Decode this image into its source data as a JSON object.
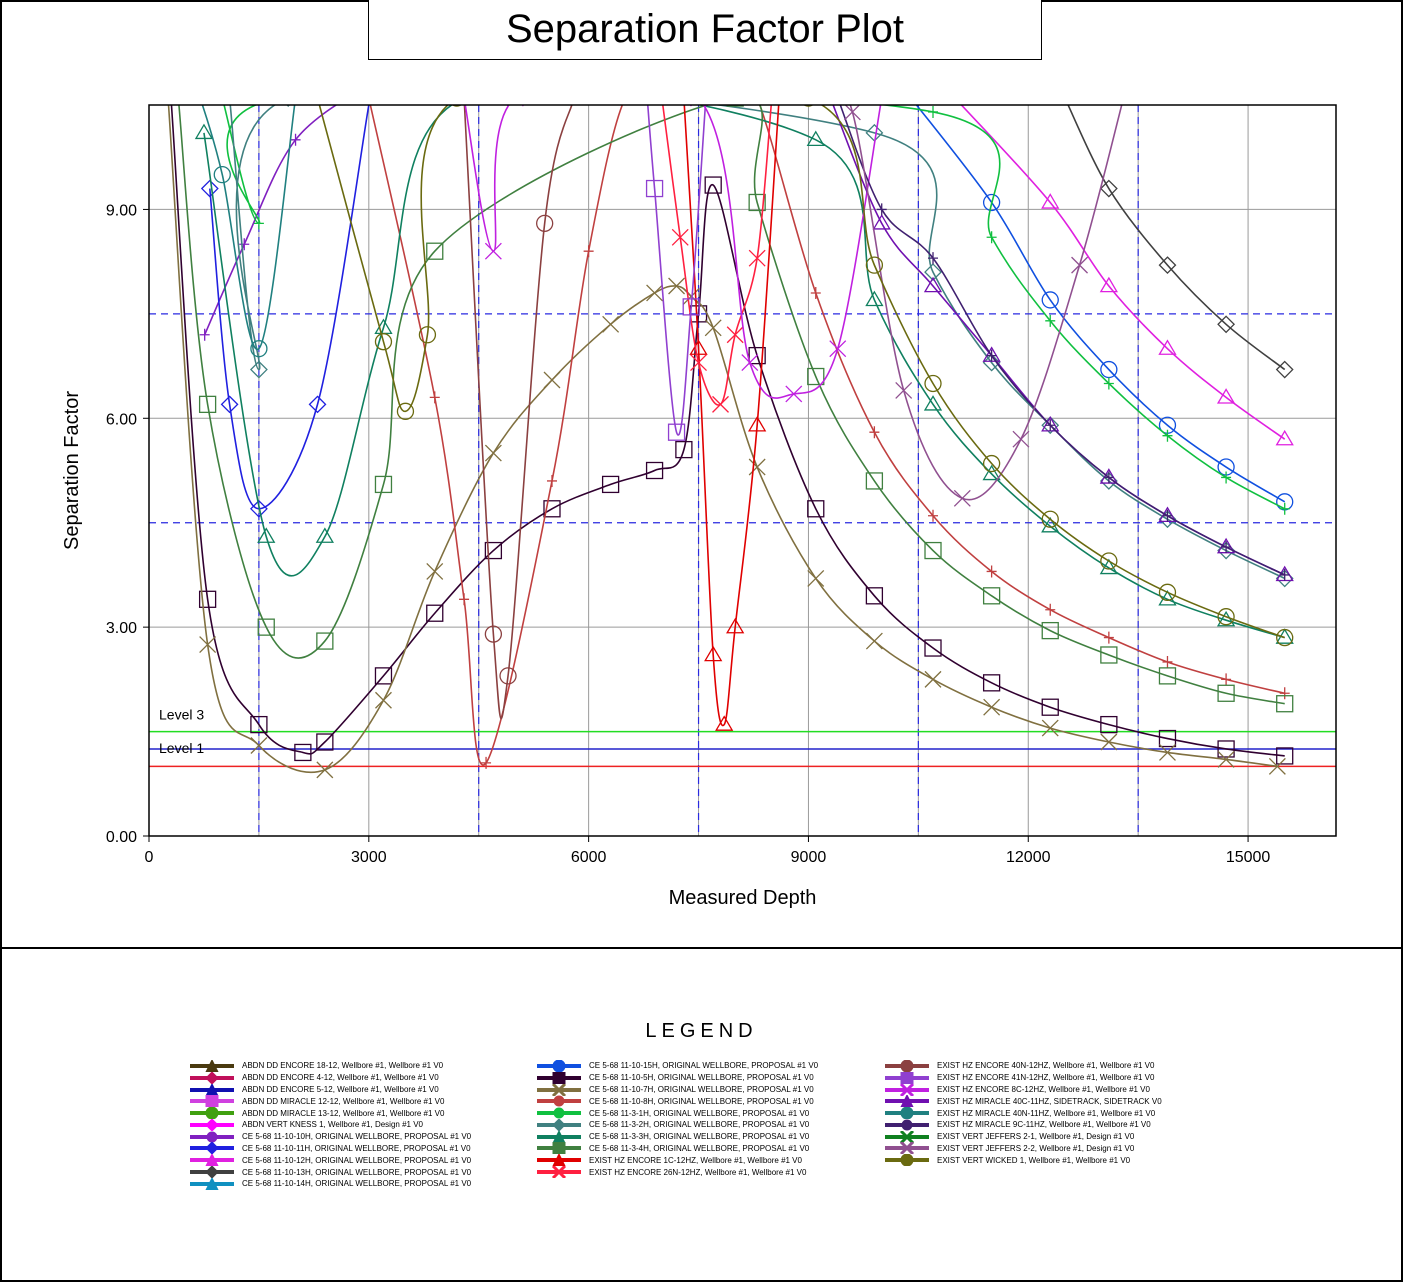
{
  "title": "Separation Factor Plot",
  "legend_title": "LEGEND",
  "chart_data": {
    "type": "line",
    "title": "Separation Factor Plot",
    "xlabel": "Measured Depth",
    "ylabel": "Separation Factor",
    "xlim": [
      0,
      16200
    ],
    "ylim": [
      0,
      10.5
    ],
    "xticks": [
      "0",
      "3000",
      "6000",
      "9000",
      "12000",
      "15000"
    ],
    "yticks": [
      "0.00",
      "3.00",
      "6.00",
      "9.00"
    ],
    "grid": true,
    "legend_position": "bottom",
    "levels": [
      {
        "label": "Level 3",
        "value": 1.5,
        "color": "#22dd22"
      },
      {
        "label": "Level 1",
        "value": 1.25,
        "color": "#2222cc"
      },
      {
        "label": "",
        "value": 1.0,
        "color": "#ee2222"
      }
    ],
    "dashed_vertical_lines": [
      1500,
      4500,
      7500,
      10500,
      13500
    ],
    "dashed_horizontal_lines": [
      4.5,
      7.5
    ],
    "series": [
      {
        "name": "ABDN DD ENCORE 18-12, Wellbore #1, Wellbore #1 V0",
        "color": "#4a3a10",
        "marker": "triangle",
        "x": [],
        "y": []
      },
      {
        "name": "ABDN DD ENCORE 4-12, Wellbore #1, Wellbore #1 V0",
        "color": "#c0105a",
        "marker": "diamond",
        "x": [],
        "y": []
      },
      {
        "name": "ABDN DD ENCORE 5-12, Wellbore #1, Wellbore #1 V0",
        "color": "#1010b0",
        "marker": "triangle",
        "x": [],
        "y": []
      },
      {
        "name": "ABDN DD MIRACLE 12-12, Wellbore #1, Wellbore #1 V0",
        "color": "#d040e0",
        "marker": "square",
        "x": [],
        "y": []
      },
      {
        "name": "ABDN DD MIRACLE 13-12, Wellbore #1, Wellbore #1 V0",
        "color": "#40a010",
        "marker": "circle",
        "x": [],
        "y": []
      },
      {
        "name": "ABDN VERT KNESS 1, Wellbore #1, Design #1 V0",
        "color": "#ff00ff",
        "marker": "diamond",
        "x": [],
        "y": []
      },
      {
        "name": "CE 5-68 11-10-10H, ORIGINAL WELLBORE, PROPOSAL #1 V0",
        "color": "#8020c0",
        "marker": "plus",
        "x": [
          760,
          1300,
          2000,
          3000
        ],
        "y": [
          7.2,
          8.5,
          10.0,
          10.8
        ]
      },
      {
        "name": "CE 5-68 11-10-11H, ORIGINAL WELLBORE, PROPOSAL #1 V0",
        "color": "#2020e0",
        "marker": "diamond",
        "x": [
          830,
          1100,
          1500,
          2300,
          3000
        ],
        "y": [
          9.3,
          6.2,
          4.7,
          6.2,
          10.5
        ]
      },
      {
        "name": "CE 5-68 11-10-12H, ORIGINAL WELLBORE, PROPOSAL #1 V0",
        "color": "#e020e0",
        "marker": "triangle",
        "x": [
          11000,
          12300,
          13100,
          13900,
          14700,
          15500
        ],
        "y": [
          10.6,
          9.1,
          7.9,
          7.0,
          6.3,
          5.7
        ]
      },
      {
        "name": "CE 5-68 11-10-13H, ORIGINAL WELLBORE, PROPOSAL #1 V0",
        "color": "#404040",
        "marker": "diamond",
        "x": [
          12500,
          13100,
          13900,
          14700,
          15500
        ],
        "y": [
          10.6,
          9.3,
          8.2,
          7.35,
          6.7
        ]
      },
      {
        "name": "CE 5-68 11-10-14H, ORIGINAL WELLBORE, PROPOSAL #1 V0",
        "color": "#1090c0",
        "marker": "triangle",
        "x": [],
        "y": []
      },
      {
        "name": "CE 5-68 11-10-15H, ORIGINAL WELLBORE, PROPOSAL #1 V0",
        "color": "#1050e0",
        "marker": "circle",
        "x": [
          10400,
          11500,
          12300,
          13100,
          13900,
          14700,
          15500
        ],
        "y": [
          10.6,
          9.1,
          7.7,
          6.7,
          5.9,
          5.3,
          4.8
        ]
      },
      {
        "name": "CE 5-68 11-10-5H, ORIGINAL WELLBORE, PROPOSAL #1 V0",
        "color": "#300030",
        "marker": "square",
        "x": [
          300,
          800,
          1500,
          2100,
          2400,
          3200,
          3900,
          4700,
          5500,
          6300,
          6900,
          7300,
          7500,
          7700,
          8300,
          9100,
          9900,
          10700,
          11500,
          12300,
          13100,
          13900,
          14700,
          15500
        ],
        "y": [
          10.6,
          3.4,
          1.6,
          1.2,
          1.35,
          2.3,
          3.2,
          4.1,
          4.7,
          5.05,
          5.25,
          5.55,
          7.5,
          9.35,
          6.9,
          4.7,
          3.45,
          2.7,
          2.2,
          1.85,
          1.6,
          1.4,
          1.25,
          1.15
        ]
      },
      {
        "name": "CE 5-68 11-10-7H, ORIGINAL WELLBORE, PROPOSAL #1 V0",
        "color": "#807040",
        "marker": "x",
        "x": [
          260,
          800,
          1500,
          2400,
          3200,
          3900,
          4700,
          5500,
          6300,
          6900,
          7200,
          7400,
          7700,
          8300,
          9100,
          9900,
          10700,
          11500,
          12300,
          13100,
          13900,
          14700,
          15400
        ],
        "y": [
          10.6,
          2.75,
          1.3,
          0.95,
          1.95,
          3.8,
          5.5,
          6.55,
          7.35,
          7.8,
          7.9,
          7.75,
          7.3,
          5.3,
          3.7,
          2.8,
          2.25,
          1.85,
          1.55,
          1.35,
          1.2,
          1.1,
          1.0
        ]
      },
      {
        "name": "CE 5-68 11-10-8H, ORIGINAL WELLBORE, PROPOSAL #1 V0",
        "color": "#c04040",
        "marker": "plus",
        "x": [
          3000,
          3900,
          4300,
          4600,
          5500,
          6000,
          6500,
          7000,
          8000,
          8300,
          9100,
          9900,
          10700,
          11500,
          12300,
          13100,
          13900,
          14700,
          15500
        ],
        "y": [
          10.6,
          6.3,
          3.4,
          1.05,
          5.1,
          8.4,
          10.6,
          10.6,
          10.6,
          10.6,
          7.8,
          5.8,
          4.6,
          3.8,
          3.25,
          2.85,
          2.5,
          2.25,
          2.05
        ]
      },
      {
        "name": "CE 5-68 11-3-1H, ORIGINAL WELLBORE, PROPOSAL #1 V0",
        "color": "#10c040",
        "marker": "plus",
        "x": [
          1000,
          1500,
          1800,
          10700,
          11500,
          12300,
          13100,
          13900,
          14700,
          15500
        ],
        "y": [
          10.6,
          8.8,
          10.6,
          10.4,
          8.6,
          7.4,
          6.5,
          5.75,
          5.15,
          4.7
        ]
      },
      {
        "name": "CE 5-68 11-3-2H, ORIGINAL WELLBORE, PROPOSAL #1 V0",
        "color": "#408080",
        "marker": "diamond",
        "x": [
          1100,
          1500,
          1900,
          9900,
          10700,
          11500,
          12300,
          13100,
          13900,
          14700,
          15500
        ],
        "y": [
          10.6,
          6.7,
          10.6,
          10.1,
          8.1,
          6.8,
          5.9,
          5.1,
          4.55,
          4.1,
          3.7
        ]
      },
      {
        "name": "CE 5-68 11-3-3H, ORIGINAL WELLBORE, PROPOSAL #1 V0",
        "color": "#108060",
        "marker": "triangle",
        "x": [
          750,
          1600,
          2400,
          3200,
          4300,
          9100,
          9900,
          10700,
          11500,
          12300,
          13100,
          13900,
          14700,
          15500
        ],
        "y": [
          10.1,
          4.3,
          4.3,
          7.3,
          10.6,
          10.0,
          7.7,
          6.2,
          5.2,
          4.45,
          3.85,
          3.4,
          3.1,
          2.85
        ]
      },
      {
        "name": "CE 5-68 11-3-4H, ORIGINAL WELLBORE, PROPOSAL #1 V0",
        "color": "#408040",
        "marker": "square",
        "x": [
          400,
          800,
          1600,
          2400,
          3200,
          3900,
          8000,
          8300,
          9100,
          9900,
          10700,
          11500,
          12300,
          13100,
          13900,
          14700,
          15500
        ],
        "y": [
          10.6,
          6.2,
          3.0,
          2.8,
          5.05,
          8.4,
          10.6,
          9.1,
          6.6,
          5.1,
          4.1,
          3.45,
          2.95,
          2.6,
          2.3,
          2.05,
          1.9
        ]
      },
      {
        "name": "EXIST HZ ENCORE 1C-12HZ, Wellbore #1, Wellbore #1 V0",
        "color": "#e00000",
        "marker": "triangle",
        "x": [
          7300,
          7500,
          7700,
          7850,
          8000,
          8300,
          8600
        ],
        "y": [
          10.6,
          7.0,
          2.6,
          1.6,
          3.0,
          5.9,
          10.6
        ]
      },
      {
        "name": "EXIST HZ ENCORE 26N-12HZ, Wellbore #1, Wellbore #1 V0",
        "color": "#ff2040",
        "marker": "x",
        "x": [
          7000,
          7250,
          7500,
          7800,
          8000,
          8300,
          8500
        ],
        "y": [
          10.6,
          8.6,
          6.8,
          6.2,
          7.2,
          8.3,
          10.6
        ]
      },
      {
        "name": "EXIST HZ ENCORE 40N-12HZ, Wellbore #1, Wellbore #1 V0",
        "color": "#8b4040",
        "marker": "circle",
        "x": [
          4300,
          4700,
          4900,
          5400,
          5800
        ],
        "y": [
          10.6,
          2.9,
          2.3,
          8.8,
          10.6
        ]
      },
      {
        "name": "EXIST HZ ENCORE 41N-12HZ, Wellbore #1, Wellbore #1 V0",
        "color": "#9040d0",
        "marker": "square",
        "x": [
          6800,
          6900,
          7200,
          7400,
          7600
        ],
        "y": [
          10.6,
          9.3,
          5.8,
          7.6,
          10.6
        ]
      },
      {
        "name": "EXIST HZ ENCORE 8C-12HZ, Wellbore #1, Wellbore #1 V0",
        "color": "#c020e0",
        "marker": "x",
        "x": [
          4300,
          4700,
          5000,
          7500,
          8200,
          8800,
          9400,
          10000
        ],
        "y": [
          10.6,
          8.4,
          10.6,
          10.6,
          6.8,
          6.35,
          7.0,
          10.6
        ]
      },
      {
        "name": "EXIST HZ MIRACLE 40C-11HZ, SIDETRACK, SIDETRACK V0",
        "color": "#7010b0",
        "marker": "triangle",
        "x": [
          9300,
          10000,
          10700,
          11500,
          12300,
          13100,
          13900,
          14700,
          15500
        ],
        "y": [
          10.6,
          8.8,
          7.9,
          6.9,
          5.9,
          5.15,
          4.6,
          4.15,
          3.75
        ]
      },
      {
        "name": "EXIST HZ MIRACLE 40N-11HZ, Wellbore #1, Wellbore #1 V0",
        "color": "#208080",
        "marker": "circle",
        "x": [
          700,
          1000,
          1500,
          2000
        ],
        "y": [
          10.6,
          9.5,
          7.0,
          10.6
        ]
      },
      {
        "name": "EXIST HZ MIRACLE 9C-11HZ, Wellbore #1, Wellbore #1 V0",
        "color": "#402070",
        "marker": "plus",
        "x": [
          9400,
          10000,
          10700,
          11500,
          12300,
          13100,
          13900,
          14700,
          15500
        ],
        "y": [
          10.6,
          9.0,
          8.3,
          6.9,
          5.9,
          5.15,
          4.6,
          4.15,
          3.75
        ]
      },
      {
        "name": "EXIST VERT JEFFERS 2-1, Wellbore #1, Design #1 V0",
        "color": "#108020",
        "marker": "x",
        "x": [],
        "y": []
      },
      {
        "name": "EXIST VERT JEFFERS 2-2, Wellbore #1, Design #1 V0",
        "color": "#905090",
        "marker": "x",
        "x": [
          9200,
          9600,
          10300,
          11100,
          11900,
          12700,
          13300
        ],
        "y": [
          10.6,
          10.4,
          6.4,
          4.85,
          5.7,
          8.2,
          10.6
        ]
      },
      {
        "name": "EXIST VERT WICKED 1, Wellbore #1, Wellbore #1 V0",
        "color": "#6a6a10",
        "marker": "circle",
        "x": [
          2300,
          3200,
          3500,
          3800,
          4200,
          9000,
          9900,
          10700,
          11500,
          12300,
          13100,
          13900,
          14700,
          15500
        ],
        "y": [
          10.6,
          7.1,
          6.1,
          7.2,
          10.6,
          10.6,
          8.2,
          6.5,
          5.35,
          4.55,
          3.95,
          3.5,
          3.15,
          2.85
        ]
      }
    ]
  }
}
